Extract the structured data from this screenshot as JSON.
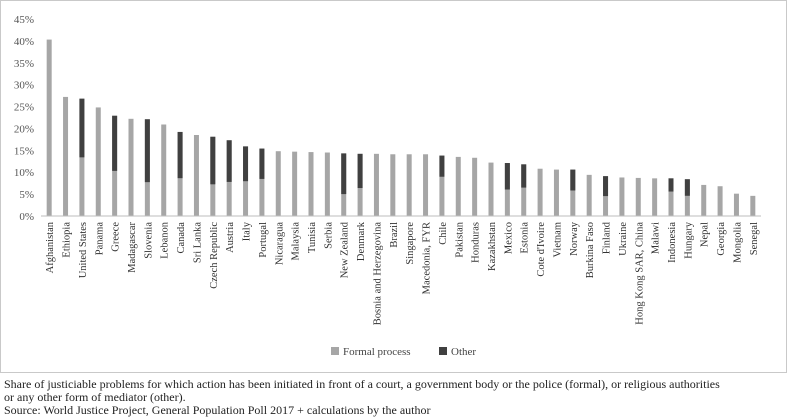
{
  "chart_data": {
    "type": "bar",
    "title": "",
    "xlabel": "",
    "ylabel": "",
    "ylim": [
      0,
      45
    ],
    "yticks": [
      "0%",
      "5%",
      "10%",
      "15%",
      "20%",
      "25%",
      "30%",
      "35%",
      "40%",
      "45%"
    ],
    "grid": false,
    "legend_position": "bottom",
    "series": [
      {
        "name": "Formal process",
        "color": "#a6a6a6"
      },
      {
        "name": "Other",
        "color": "#404040"
      }
    ],
    "categories": [
      "Afghanistan",
      "Ethiopia",
      "United States",
      "Panama",
      "Greece",
      "Madagascar",
      "Slovenia",
      "Lebanon",
      "Canada",
      "Sri Lanka",
      "Czech Republic",
      "Austria",
      "Italy",
      "Portugal",
      "Nicaragua",
      "Malaysia",
      "Tunisia",
      "Serbia",
      "New Zealand",
      "Denmark",
      "Bosnia and Herzegovina",
      "Brazil",
      "Singapore",
      "Macedonia, FYR",
      "Chile",
      "Pakistan",
      "Honduras",
      "Kazakhstan",
      "Mexico",
      "Estonia",
      "Cote d'Ivoire",
      "Vietnam",
      "Norway",
      "Burkina Faso",
      "Finland",
      "Ukraine",
      "Hong Kong SAR, China",
      "Malawi",
      "Indonesia",
      "Hungary",
      "Nepal",
      "Georgia",
      "Mongolia",
      "Senegal"
    ],
    "values": [
      40.3,
      27.2,
      26.8,
      24.8,
      22.9,
      22.2,
      22.1,
      20.9,
      19.2,
      18.5,
      18.1,
      17.3,
      15.9,
      15.4,
      14.8,
      14.7,
      14.6,
      14.5,
      14.3,
      14.2,
      14.2,
      14.1,
      14.1,
      14.1,
      13.8,
      13.5,
      13.3,
      12.2,
      12.1,
      11.8,
      10.8,
      10.6,
      10.6,
      9.4,
      9.1,
      8.8,
      8.7,
      8.6,
      8.6,
      8.4,
      7.1,
      6.8,
      5.1,
      4.6
    ],
    "other_share": [
      0,
      0,
      0.5,
      0,
      0.55,
      0,
      0.65,
      0,
      0.55,
      0,
      0.6,
      0.55,
      0.5,
      0.45,
      0,
      0,
      0,
      0,
      0.65,
      0.55,
      0,
      0,
      0,
      0,
      0.35,
      0,
      0,
      0,
      0.5,
      0.45,
      0,
      0,
      0.45,
      0,
      0.5,
      0,
      0,
      0,
      0.35,
      0.45,
      0,
      0,
      0,
      0
    ]
  },
  "caption": {
    "line1": "Share of justiciable problems for which action has been initiated in front of a court, a government body or the police (formal), or religious authorities",
    "line2": "or any other form of mediator (other).",
    "source": "Source: World Justice Project, General Population Poll 2017 + calculations by the author"
  }
}
